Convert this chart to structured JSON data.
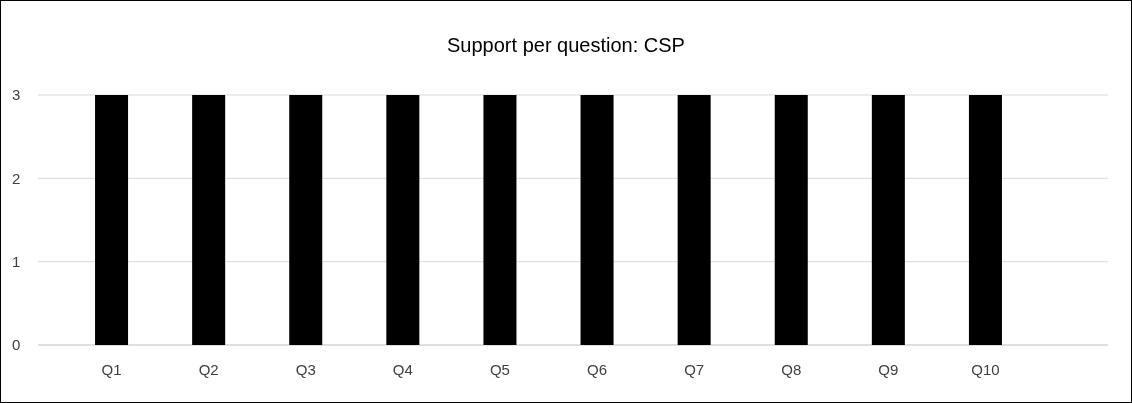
{
  "chart_data": {
    "type": "bar",
    "title": "Support per question: CSP",
    "categories": [
      "Q1",
      "Q2",
      "Q3",
      "Q4",
      "Q5",
      "Q6",
      "Q7",
      "Q8",
      "Q9",
      "Q10"
    ],
    "values": [
      3,
      3,
      3,
      3,
      3,
      3,
      3,
      3,
      3,
      3
    ],
    "color": "#000000",
    "ylim": [
      0,
      3
    ],
    "yticks": [
      0,
      1,
      2,
      3
    ],
    "grid": "y"
  }
}
